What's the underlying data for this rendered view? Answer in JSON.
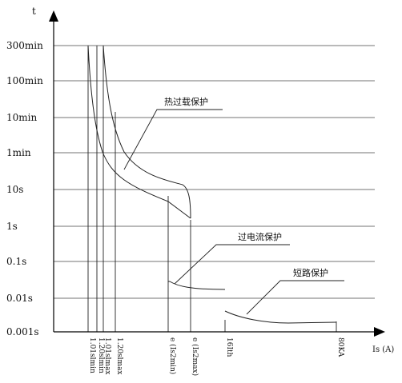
{
  "chart_data": {
    "type": "line",
    "ylabel": "t",
    "xlabel": "Is (A)",
    "y_tick_labels": [
      "300min",
      "100min",
      "10min",
      "1min",
      "10s",
      "1s",
      "0.1s",
      "0.01s",
      "0.001s"
    ],
    "x_tick_labels": [
      "1.01slmin",
      "1.20slmin",
      "1.01slmax",
      "1.20slmax",
      "e (Is2min)",
      "e (Is2max)",
      "16Ith",
      "80KA"
    ],
    "annotations": [
      "热过载保护",
      "过电流保护",
      "短路保护"
    ],
    "grid": "horizontal",
    "scale": "log-log"
  }
}
